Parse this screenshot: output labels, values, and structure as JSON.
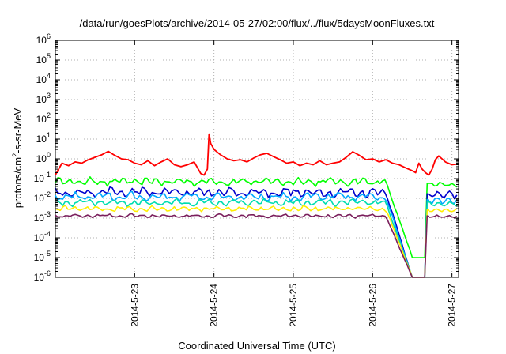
{
  "chart_data": {
    "type": "line",
    "title": "/data/run/goesPlots/archive/2014-05-27/02:00/flux/../flux/5daysMoonFluxes.txt",
    "xlabel": "Coordinated Universal Time (UTC)",
    "ylabel": "protons/cm2-s-sr-MeV",
    "ylabel_parts": {
      "base": "protons/cm",
      "sup": "2",
      "rest": "-s-sr-MeV"
    },
    "y_scale": "log",
    "ylim": [
      1e-06,
      1000000.0
    ],
    "y_ticks": [
      {
        "value": 1e-06,
        "base": "10",
        "exp": "-6"
      },
      {
        "value": 1e-05,
        "base": "10",
        "exp": "-5"
      },
      {
        "value": 0.0001,
        "base": "10",
        "exp": "-4"
      },
      {
        "value": 0.001,
        "base": "10",
        "exp": "-3"
      },
      {
        "value": 0.01,
        "base": "10",
        "exp": "-2"
      },
      {
        "value": 0.1,
        "base": "10",
        "exp": "-1"
      },
      {
        "value": 1,
        "base": "10",
        "exp": "0"
      },
      {
        "value": 10,
        "base": "10",
        "exp": "1"
      },
      {
        "value": 100,
        "base": "10",
        "exp": "2"
      },
      {
        "value": 1000,
        "base": "10",
        "exp": "3"
      },
      {
        "value": 10000,
        "base": "10",
        "exp": "4"
      },
      {
        "value": 100000,
        "base": "10",
        "exp": "5"
      },
      {
        "value": 1000000,
        "base": "10",
        "exp": "6"
      }
    ],
    "xlim": [
      "2014-05-22T00:00",
      "2014-05-27T02:00"
    ],
    "x_ticks": [
      "2014-5-23",
      "2014-5-24",
      "2014-5-25",
      "2014-5-26",
      "2014-5-27"
    ],
    "grid": true,
    "series": [
      {
        "color": "#ff0000",
        "points": [
          [
            "2014-05-22T00:00",
            0.15
          ],
          [
            "2014-05-22T02:00",
            0.6
          ],
          [
            "2014-05-22T04:00",
            0.45
          ],
          [
            "2014-05-22T06:00",
            0.7
          ],
          [
            "2014-05-22T08:00",
            0.6
          ],
          [
            "2014-05-22T10:00",
            0.9
          ],
          [
            "2014-05-22T12:00",
            1.2
          ],
          [
            "2014-05-22T14:00",
            1.6
          ],
          [
            "2014-05-22T16:00",
            2.4
          ],
          [
            "2014-05-22T18:00",
            1.5
          ],
          [
            "2014-05-22T20:00",
            1.0
          ],
          [
            "2014-05-22T22:00",
            0.9
          ],
          [
            "2014-05-23T00:00",
            0.6
          ],
          [
            "2014-05-23T02:00",
            0.5
          ],
          [
            "2014-05-23T04:00",
            0.8
          ],
          [
            "2014-05-23T06:00",
            0.45
          ],
          [
            "2014-05-23T08:00",
            0.7
          ],
          [
            "2014-05-23T10:00",
            1.0
          ],
          [
            "2014-05-23T12:00",
            0.5
          ],
          [
            "2014-05-23T14:00",
            0.4
          ],
          [
            "2014-05-23T16:00",
            0.5
          ],
          [
            "2014-05-23T18:00",
            0.7
          ],
          [
            "2014-05-23T20:00",
            0.18
          ],
          [
            "2014-05-23T21:00",
            0.15
          ],
          [
            "2014-05-23T22:00",
            0.3
          ],
          [
            "2014-05-23T22:30",
            18.0
          ],
          [
            "2014-05-23T23:00",
            6.0
          ],
          [
            "2014-05-24T00:00",
            3.0
          ],
          [
            "2014-05-24T02:00",
            1.6
          ],
          [
            "2014-05-24T04:00",
            1.0
          ],
          [
            "2014-05-24T06:00",
            0.8
          ],
          [
            "2014-05-24T08:00",
            0.9
          ],
          [
            "2014-05-24T10:00",
            0.7
          ],
          [
            "2014-05-24T12:00",
            1.1
          ],
          [
            "2014-05-24T14:00",
            1.6
          ],
          [
            "2014-05-24T16:00",
            1.9
          ],
          [
            "2014-05-24T18:00",
            1.3
          ],
          [
            "2014-05-24T20:00",
            0.9
          ],
          [
            "2014-05-24T22:00",
            0.6
          ],
          [
            "2014-05-25T00:00",
            0.7
          ],
          [
            "2014-05-25T02:00",
            0.45
          ],
          [
            "2014-05-25T04:00",
            0.6
          ],
          [
            "2014-05-25T06:00",
            0.5
          ],
          [
            "2014-05-25T08:00",
            0.8
          ],
          [
            "2014-05-25T10:00",
            0.5
          ],
          [
            "2014-05-25T12:00",
            0.6
          ],
          [
            "2014-05-25T14:00",
            0.7
          ],
          [
            "2014-05-25T16:00",
            1.2
          ],
          [
            "2014-05-25T18:00",
            2.3
          ],
          [
            "2014-05-25T20:00",
            1.5
          ],
          [
            "2014-05-25T22:00",
            0.9
          ],
          [
            "2014-05-26T00:00",
            1.0
          ],
          [
            "2014-05-26T02:00",
            0.7
          ],
          [
            "2014-05-26T04:00",
            0.9
          ],
          [
            "2014-05-26T06:00",
            0.6
          ],
          [
            "2014-05-26T08:00",
            0.5
          ],
          [
            "2014-05-26T10:00",
            0.35
          ],
          [
            "2014-05-26T12:00",
            0.25
          ],
          [
            "2014-05-26T13:00",
            0.2
          ],
          [
            "2014-05-26T14:00",
            0.6
          ],
          [
            "2014-05-26T15:00",
            0.3
          ],
          [
            "2014-05-26T16:00",
            0.2
          ],
          [
            "2014-05-26T17:00",
            0.15
          ],
          [
            "2014-05-26T18:00",
            0.3
          ],
          [
            "2014-05-26T19:00",
            0.9
          ],
          [
            "2014-05-26T20:00",
            1.4
          ],
          [
            "2014-05-26T21:00",
            1.0
          ],
          [
            "2014-05-26T22:00",
            0.7
          ],
          [
            "2014-05-27T00:00",
            0.5
          ],
          [
            "2014-05-27T02:00",
            0.55
          ]
        ]
      },
      {
        "color": "#00ff00",
        "base": 0.07,
        "amp": 1.6,
        "phase": 0.0,
        "dip_end_time": "2014-05-26T12:00",
        "dip_to": 1e-05,
        "recover_at": "2014-05-26T16:00",
        "after": 0.05
      },
      {
        "color": "#0000cd",
        "base": 0.02,
        "amp": 1.8,
        "phase": 1.3,
        "dip_end_time": "2014-05-26T12:00",
        "dip_to": 1e-06,
        "recover_at": "2014-05-26T16:00",
        "after": 0.015
      },
      {
        "color": "#00aaff",
        "base": 0.012,
        "amp": 1.7,
        "phase": 2.1,
        "dip_end_time": "2014-05-26T12:00",
        "dip_to": 1e-06,
        "recover_at": "2014-05-26T16:00",
        "after": 0.008
      },
      {
        "color": "#00ddb0",
        "base": 0.006,
        "amp": 1.5,
        "phase": 0.7,
        "dip_end_time": "2014-05-26T12:00",
        "dip_to": 1e-06,
        "recover_at": "2014-05-26T16:00",
        "after": 0.005
      },
      {
        "color": "#ffee00",
        "base": 0.003,
        "amp": 1.4,
        "phase": 2.8,
        "dip_end_time": "2014-05-26T12:00",
        "dip_to": 1e-06,
        "recover_at": "2014-05-26T16:00",
        "after": 0.0025
      },
      {
        "color": "#7a1f5c",
        "base": 0.0013,
        "amp": 1.25,
        "phase": 1.9,
        "dip_end_time": "2014-05-26T12:00",
        "dip_to": 1e-06,
        "recover_at": "2014-05-26T16:00",
        "after": 0.0012
      }
    ]
  }
}
